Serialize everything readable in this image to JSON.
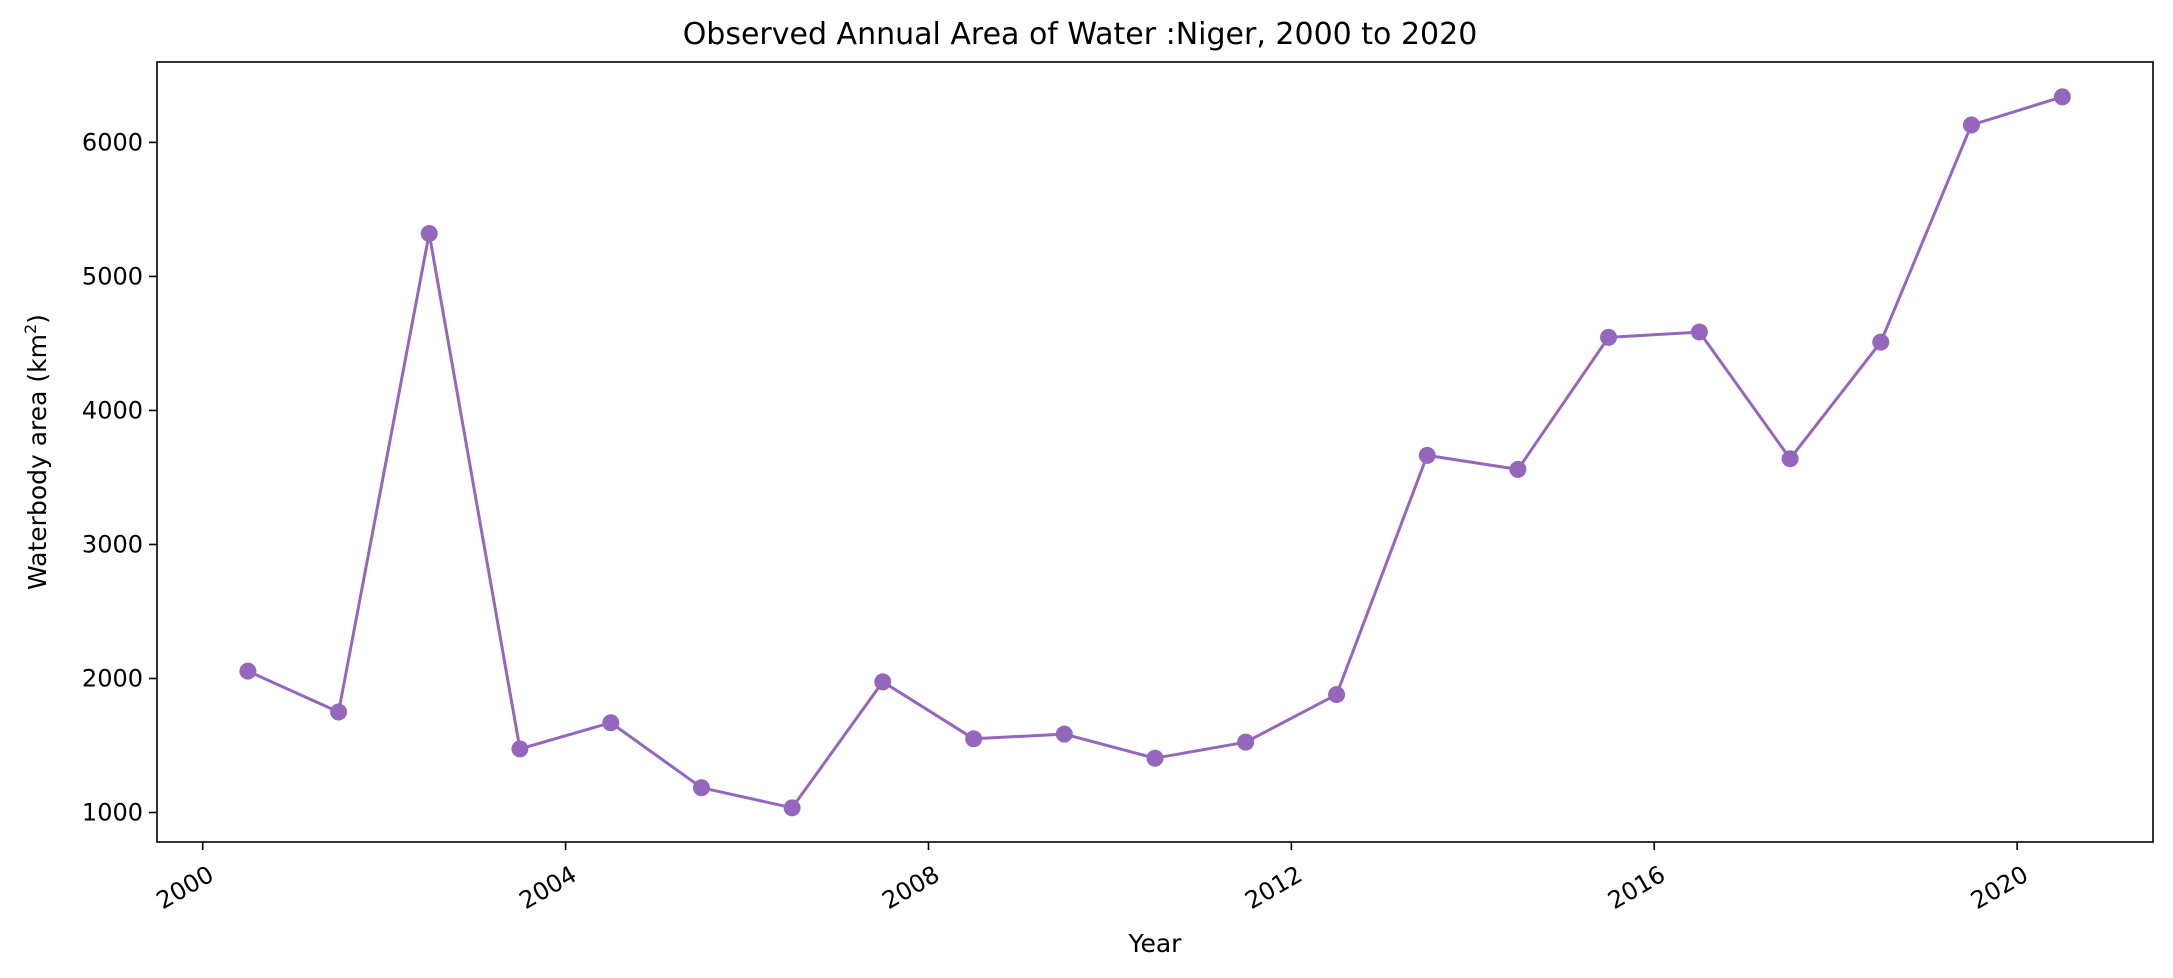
{
  "chart_data": {
    "type": "line",
    "title": "Observed Annual Area of Water :Niger, 2000 to 2020",
    "xlabel": "Year",
    "ylabel_text": "Waterbody area (km",
    "ylabel_sup": "2",
    "ylabel_close": ")",
    "color": "#9467bd",
    "marker": "circle",
    "grid": false,
    "xlim": [
      "1999-07-01",
      "2021-07-01"
    ],
    "ylim": [
      780,
      6600
    ],
    "x_ticks": [
      {
        "value": "2000-01-01",
        "label": "2000"
      },
      {
        "value": "2004-01-01",
        "label": "2004"
      },
      {
        "value": "2008-01-01",
        "label": "2008"
      },
      {
        "value": "2012-01-01",
        "label": "2012"
      },
      {
        "value": "2016-01-01",
        "label": "2016"
      },
      {
        "value": "2020-01-01",
        "label": "2020"
      }
    ],
    "y_ticks": [
      {
        "value": 1000,
        "label": "1000"
      },
      {
        "value": 2000,
        "label": "2000"
      },
      {
        "value": 3000,
        "label": "3000"
      },
      {
        "value": 4000,
        "label": "4000"
      },
      {
        "value": 5000,
        "label": "5000"
      },
      {
        "value": 6000,
        "label": "6000"
      }
    ],
    "series": [
      {
        "x": [
          "2000-07-01",
          "2001-07-01",
          "2002-07-01",
          "2003-07-01",
          "2004-07-01",
          "2005-07-01",
          "2006-07-01",
          "2007-07-01",
          "2008-07-01",
          "2009-07-01",
          "2010-07-01",
          "2011-07-01",
          "2012-07-01",
          "2013-07-01",
          "2014-07-01",
          "2015-07-01",
          "2016-07-01",
          "2017-07-01",
          "2018-07-01",
          "2019-07-01",
          "2020-07-01"
        ],
        "values": [
          2055,
          1750,
          5320,
          1475,
          1670,
          1185,
          1035,
          1975,
          1550,
          1585,
          1405,
          1525,
          1880,
          3665,
          3560,
          4545,
          4585,
          3640,
          4510,
          6130,
          6340
        ]
      }
    ]
  }
}
